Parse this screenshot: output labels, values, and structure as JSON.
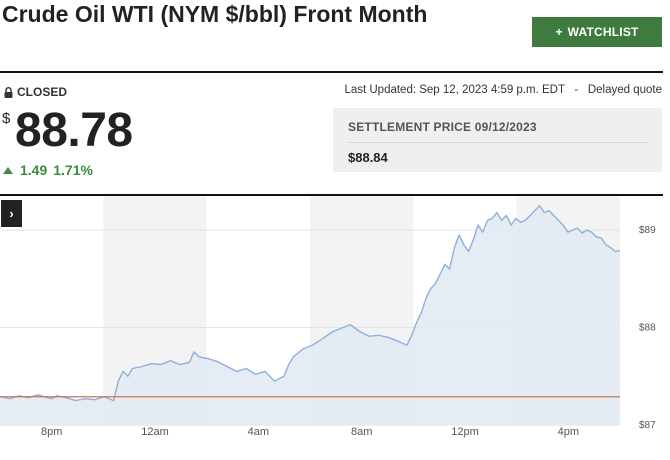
{
  "header": {
    "title": "Crude Oil WTI (NYM $/bbl) Front Month",
    "watchlist_label": "WATCHLIST",
    "watchlist_icon": "plus-icon"
  },
  "status": {
    "closed_label": "CLOSED",
    "last_updated": "Last Updated: Sep 12, 2023 4:59 p.m. EDT",
    "delayed": "Delayed quote"
  },
  "quote": {
    "currency": "$",
    "price": "88.78",
    "change": "1.49",
    "change_percent": "1.71%",
    "change_color": "#3f8a3f"
  },
  "settlement": {
    "label": "SETTLEMENT PRICE 09/12/2023",
    "value": "$88.84"
  },
  "chart_data": {
    "type": "area",
    "x_labels": [
      "8pm",
      "12am",
      "4am",
      "8am",
      "12pm",
      "4pm"
    ],
    "y_ticks": [
      "$89",
      "$88",
      "$87"
    ],
    "ylim": [
      87,
      89.35
    ],
    "previous_close": 87.29,
    "line_color": "#8cb1dc",
    "fill_color": "#e3eaf2",
    "reference_line_color": "#c8784a",
    "points": [
      [
        0,
        87.29
      ],
      [
        2,
        87.27
      ],
      [
        4,
        87.3
      ],
      [
        6,
        87.28
      ],
      [
        8,
        87.31
      ],
      [
        10,
        87.28
      ],
      [
        11,
        87.27
      ],
      [
        12,
        87.3
      ],
      [
        14,
        87.28
      ],
      [
        16,
        87.25
      ],
      [
        18,
        87.27
      ],
      [
        20,
        87.26
      ],
      [
        22,
        87.29
      ],
      [
        24,
        87.25
      ],
      [
        25,
        87.45
      ],
      [
        26,
        87.55
      ],
      [
        27,
        87.5
      ],
      [
        28,
        87.58
      ],
      [
        30,
        87.6
      ],
      [
        32,
        87.63
      ],
      [
        34,
        87.62
      ],
      [
        36,
        87.66
      ],
      [
        38,
        87.62
      ],
      [
        40,
        87.64
      ],
      [
        41,
        87.75
      ],
      [
        42,
        87.7
      ],
      [
        44,
        87.68
      ],
      [
        46,
        87.65
      ],
      [
        48,
        87.6
      ],
      [
        50,
        87.55
      ],
      [
        52,
        87.58
      ],
      [
        54,
        87.52
      ],
      [
        56,
        87.55
      ],
      [
        58,
        87.45
      ],
      [
        60,
        87.5
      ],
      [
        61,
        87.62
      ],
      [
        62,
        87.7
      ],
      [
        64,
        87.78
      ],
      [
        66,
        87.82
      ],
      [
        68,
        87.88
      ],
      [
        70,
        87.95
      ],
      [
        72,
        87.99
      ],
      [
        74,
        88.03
      ],
      [
        76,
        87.96
      ],
      [
        78,
        87.91
      ],
      [
        80,
        87.92
      ],
      [
        82,
        87.9
      ],
      [
        84,
        87.86
      ],
      [
        86,
        87.82
      ],
      [
        87,
        87.92
      ],
      [
        88,
        88.05
      ],
      [
        89,
        88.15
      ],
      [
        90,
        88.3
      ],
      [
        91,
        88.4
      ],
      [
        92,
        88.45
      ],
      [
        93,
        88.55
      ],
      [
        94,
        88.65
      ],
      [
        95,
        88.6
      ],
      [
        96,
        88.82
      ],
      [
        97,
        88.95
      ],
      [
        98,
        88.85
      ],
      [
        99,
        88.78
      ],
      [
        100,
        88.9
      ],
      [
        101,
        89.05
      ],
      [
        102,
        88.98
      ],
      [
        103,
        89.1
      ],
      [
        104,
        89.12
      ],
      [
        105,
        89.18
      ],
      [
        106,
        89.1
      ],
      [
        107,
        89.15
      ],
      [
        108,
        89.05
      ],
      [
        109,
        89.12
      ],
      [
        110,
        89.08
      ],
      [
        111,
        89.1
      ],
      [
        112,
        89.15
      ],
      [
        113,
        89.2
      ],
      [
        114,
        89.25
      ],
      [
        115,
        89.18
      ],
      [
        116,
        89.2
      ],
      [
        117,
        89.15
      ],
      [
        118,
        89.1
      ],
      [
        119,
        89.05
      ],
      [
        120,
        88.98
      ],
      [
        121,
        89.0
      ],
      [
        122,
        89.02
      ],
      [
        123,
        88.97
      ],
      [
        124,
        89.0
      ],
      [
        125,
        88.98
      ],
      [
        126,
        88.93
      ],
      [
        127,
        88.92
      ],
      [
        128,
        88.85
      ],
      [
        129,
        88.82
      ],
      [
        130,
        88.78
      ],
      [
        131,
        88.79
      ]
    ]
  }
}
